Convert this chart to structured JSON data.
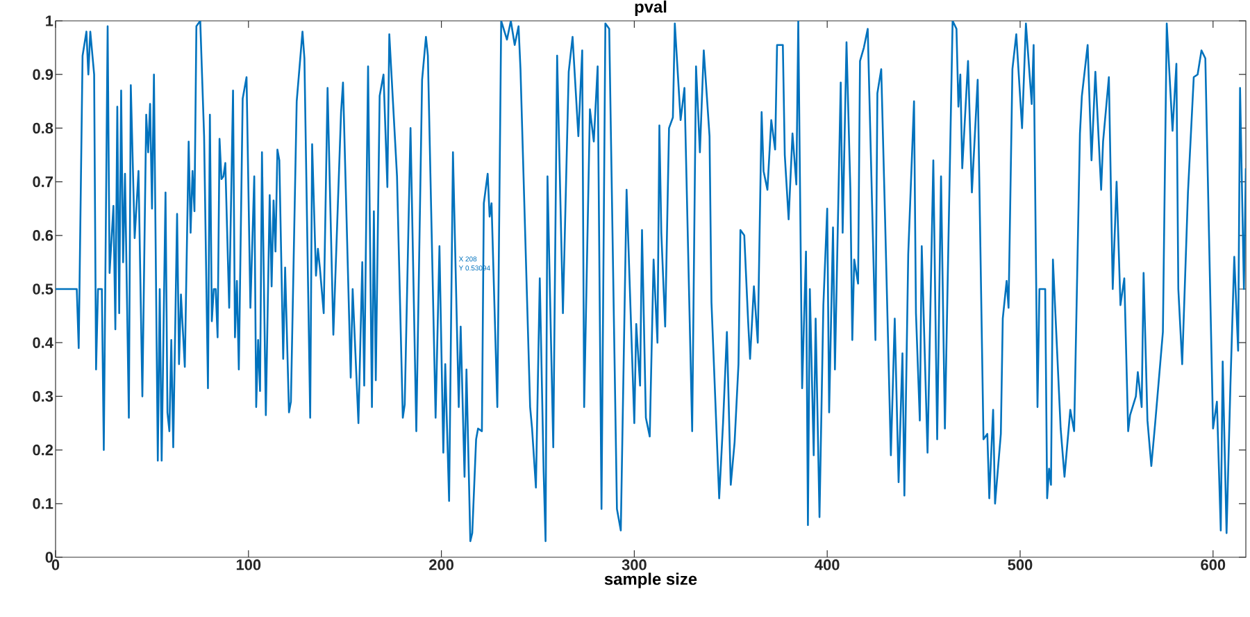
{
  "chart_data": {
    "type": "line",
    "title": "pval",
    "xlabel": "sample size",
    "xlim": [
      0,
      617
    ],
    "ylim": [
      0,
      1
    ],
    "xticks": [
      0,
      100,
      200,
      300,
      400,
      500,
      600
    ],
    "yticks": [
      0,
      0.1,
      0.2,
      0.3,
      0.4,
      0.5,
      0.6,
      0.7,
      0.8,
      0.9,
      1
    ],
    "grid": false,
    "marker": "none",
    "line_style": "solid",
    "annotations": [
      {
        "text": "X 208",
        "x": 208,
        "y": 0.53094
      },
      {
        "text": "Y 0.53094",
        "x": 208,
        "y": 0.53094
      }
    ],
    "series": [
      {
        "color": "#0072bd",
        "x": [
          0,
          11,
          12,
          14,
          16,
          17,
          18,
          20,
          21,
          22,
          24,
          25,
          27,
          28,
          30,
          31,
          32,
          33,
          34,
          35,
          36,
          38,
          39,
          41,
          43,
          45,
          47,
          48,
          49,
          50,
          51,
          53,
          54,
          55,
          57,
          58,
          59,
          60,
          61,
          63,
          64,
          65,
          67,
          69,
          70,
          71,
          72,
          73,
          75,
          77,
          79,
          80,
          81,
          82,
          83,
          84,
          85,
          86,
          87,
          88,
          90,
          92,
          93,
          94,
          95,
          97,
          99,
          101,
          103,
          104,
          105,
          106,
          107,
          109,
          111,
          112,
          113,
          114,
          115,
          116,
          118,
          119,
          121,
          122,
          125,
          128,
          129,
          132,
          133,
          135,
          136,
          137,
          139,
          141,
          142,
          144,
          148,
          149,
          153,
          154,
          157,
          159,
          160,
          162,
          164,
          165,
          166,
          168,
          170,
          172,
          173,
          177,
          180,
          181,
          184,
          187,
          190,
          192,
          193,
          197,
          199,
          201,
          202,
          204,
          206,
          209,
          210,
          212,
          213,
          215,
          216,
          218,
          219,
          221,
          222,
          224,
          225,
          226,
          229,
          231,
          234,
          236,
          238,
          240,
          241,
          246,
          247,
          249,
          251,
          253,
          254,
          255,
          258,
          260,
          263,
          266,
          268,
          271,
          273,
          274,
          277,
          279,
          281,
          283,
          285,
          287,
          291,
          293,
          296,
          300,
          301,
          303,
          304,
          306,
          308,
          310,
          312,
          313,
          314,
          316,
          318,
          320,
          321,
          324,
          326,
          330,
          332,
          334,
          336,
          339,
          340,
          344,
          346,
          348,
          350,
          352,
          354,
          355,
          357,
          359,
          360,
          362,
          364,
          366,
          367,
          369,
          371,
          373,
          374,
          377,
          378,
          380,
          382,
          384,
          385,
          387,
          389,
          390,
          391,
          393,
          394,
          396,
          398,
          400,
          401,
          403,
          404,
          407,
          408,
          410,
          412,
          413,
          414,
          416,
          417,
          419,
          421,
          425,
          426,
          428,
          430,
          433,
          435,
          437,
          439,
          440,
          442,
          445,
          446,
          448,
          449,
          452,
          455,
          457,
          459,
          461,
          465,
          467,
          468,
          469,
          470,
          473,
          475,
          478,
          481,
          483,
          484,
          486,
          487,
          490,
          491,
          493,
          494,
          496,
          498,
          501,
          503,
          506,
          507,
          509,
          510,
          513,
          514,
          515,
          516,
          517,
          521,
          523,
          526,
          528,
          531,
          532,
          535,
          537,
          539,
          542,
          543,
          546,
          548,
          550,
          552,
          554,
          556,
          557,
          560,
          561,
          563,
          564,
          566,
          568,
          570,
          574,
          576,
          579,
          581,
          582,
          584,
          587,
          590,
          592,
          594,
          596,
          600,
          602,
          604,
          605,
          607,
          609,
          611,
          613,
          614,
          616,
          617
        ],
        "values": [
          0.5,
          0.5,
          0.39,
          0.935,
          0.98,
          0.9,
          0.98,
          0.9,
          0.35,
          0.5,
          0.5,
          0.2,
          0.99,
          0.53,
          0.655,
          0.425,
          0.84,
          0.455,
          0.87,
          0.55,
          0.715,
          0.26,
          0.88,
          0.595,
          0.72,
          0.3,
          0.825,
          0.755,
          0.845,
          0.65,
          0.9,
          0.18,
          0.5,
          0.18,
          0.68,
          0.27,
          0.235,
          0.405,
          0.205,
          0.64,
          0.36,
          0.49,
          0.355,
          0.775,
          0.605,
          0.72,
          0.645,
          0.99,
          1.0,
          0.785,
          0.315,
          0.825,
          0.44,
          0.5,
          0.5,
          0.41,
          0.78,
          0.705,
          0.71,
          0.735,
          0.465,
          0.87,
          0.41,
          0.515,
          0.35,
          0.855,
          0.895,
          0.465,
          0.71,
          0.28,
          0.405,
          0.31,
          0.755,
          0.265,
          0.675,
          0.505,
          0.665,
          0.57,
          0.76,
          0.74,
          0.37,
          0.54,
          0.27,
          0.29,
          0.85,
          0.98,
          0.93,
          0.26,
          0.77,
          0.525,
          0.575,
          0.54,
          0.455,
          0.875,
          0.72,
          0.415,
          0.83,
          0.885,
          0.335,
          0.5,
          0.25,
          0.55,
          0.32,
          0.915,
          0.28,
          0.645,
          0.33,
          0.86,
          0.9,
          0.69,
          0.975,
          0.71,
          0.26,
          0.285,
          0.8,
          0.235,
          0.89,
          0.97,
          0.935,
          0.26,
          0.58,
          0.195,
          0.36,
          0.105,
          0.755,
          0.28,
          0.43,
          0.15,
          0.35,
          0.03,
          0.045,
          0.22,
          0.24,
          0.235,
          0.66,
          0.715,
          0.635,
          0.66,
          0.28,
          1.0,
          0.965,
          1.0,
          0.955,
          0.99,
          0.91,
          0.28,
          0.24,
          0.13,
          0.52,
          0.16,
          0.03,
          0.71,
          0.205,
          0.935,
          0.455,
          0.905,
          0.97,
          0.785,
          0.945,
          0.28,
          0.835,
          0.775,
          0.915,
          0.09,
          0.995,
          0.985,
          0.09,
          0.05,
          0.685,
          0.25,
          0.435,
          0.32,
          0.61,
          0.26,
          0.225,
          0.555,
          0.4,
          0.805,
          0.605,
          0.43,
          0.8,
          0.82,
          0.995,
          0.815,
          0.875,
          0.235,
          0.915,
          0.755,
          0.945,
          0.785,
          0.475,
          0.11,
          0.25,
          0.42,
          0.135,
          0.215,
          0.36,
          0.61,
          0.6,
          0.44,
          0.37,
          0.505,
          0.4,
          0.83,
          0.72,
          0.685,
          0.815,
          0.76,
          0.955,
          0.955,
          0.75,
          0.63,
          0.79,
          0.695,
          1.0,
          0.315,
          0.57,
          0.06,
          0.5,
          0.19,
          0.445,
          0.075,
          0.47,
          0.65,
          0.27,
          0.615,
          0.35,
          0.885,
          0.605,
          0.96,
          0.685,
          0.405,
          0.555,
          0.51,
          0.925,
          0.95,
          0.985,
          0.405,
          0.865,
          0.91,
          0.63,
          0.19,
          0.445,
          0.14,
          0.38,
          0.115,
          0.565,
          0.85,
          0.455,
          0.255,
          0.58,
          0.195,
          0.74,
          0.22,
          0.71,
          0.24,
          1.0,
          0.985,
          0.84,
          0.9,
          0.725,
          0.925,
          0.68,
          0.89,
          0.22,
          0.23,
          0.11,
          0.275,
          0.1,
          0.23,
          0.445,
          0.515,
          0.465,
          0.91,
          0.975,
          0.8,
          0.995,
          0.845,
          0.955,
          0.28,
          0.5,
          0.5,
          0.11,
          0.165,
          0.135,
          0.555,
          0.24,
          0.15,
          0.275,
          0.235,
          0.79,
          0.86,
          0.955,
          0.74,
          0.905,
          0.685,
          0.775,
          0.895,
          0.5,
          0.7,
          0.47,
          0.52,
          0.235,
          0.265,
          0.3,
          0.345,
          0.28,
          0.53,
          0.255,
          0.17,
          0.25,
          0.42,
          0.995,
          0.795,
          0.92,
          0.5,
          0.36,
          0.68,
          0.895,
          0.9,
          0.945,
          0.93,
          0.24,
          0.29,
          0.05,
          0.365,
          0.045,
          0.32,
          0.56,
          0.385,
          0.875,
          0.5,
          0.725
        ]
      }
    ]
  }
}
